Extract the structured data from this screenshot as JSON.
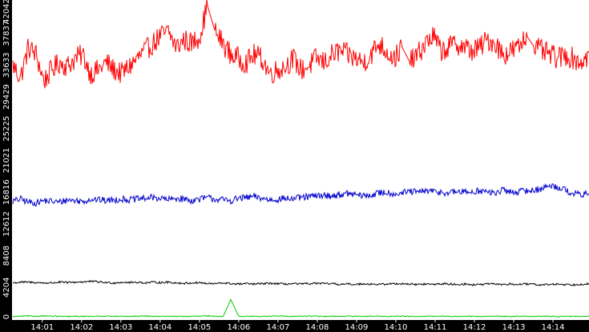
{
  "chart_data": {
    "type": "line",
    "title": "",
    "xlabel": "",
    "ylabel": "",
    "grid": false,
    "legend": "none",
    "colors": {
      "background": "#ffffff",
      "axis_band": "#000000",
      "axis_text": "#ffffff"
    },
    "ylim": [
      0,
      42042
    ],
    "xlim": [
      "14:00:15",
      "14:14:55"
    ],
    "y_ticks": [
      "0",
      "4204",
      "8408",
      "12612",
      "16816",
      "21021",
      "25225",
      "29429",
      "33633",
      "37837",
      "42042"
    ],
    "x_ticks": [
      "14:01",
      "14:02",
      "14:03",
      "14:04",
      "14:05",
      "14:06",
      "14:07",
      "14:08",
      "14:09",
      "14:10",
      "14:11",
      "14:12",
      "14:13",
      "14:14"
    ],
    "x_tick_minutes": [
      1,
      2,
      3,
      4,
      5,
      6,
      7,
      8,
      9,
      10,
      11,
      12,
      13,
      14
    ],
    "series": [
      {
        "color": "#ff0000",
        "noise": 1500,
        "values": [
          33600,
          32000,
          36000,
          35000,
          31500,
          33000,
          34000,
          33500,
          34500,
          35000,
          32500,
          33000,
          34000,
          33000,
          32500,
          33500,
          34500,
          35500,
          36500,
          37500,
          38000,
          36000,
          37000,
          36500,
          37500,
          41500,
          38000,
          36500,
          35000,
          34500,
          34000,
          35000,
          34500,
          32500,
          33000,
          33500,
          34500,
          33000,
          33500,
          34500,
          34000,
          35000,
          35500,
          35000,
          34500,
          34000,
          35000,
          36500,
          35500,
          34500,
          36000,
          34000,
          35000,
          36500,
          37500,
          35500,
          36000,
          36500,
          36000,
          35500,
          36000,
          37000,
          36500,
          35000,
          35500,
          36000,
          37500,
          36000,
          35500,
          35000,
          34500,
          35000,
          34500,
          34000,
          35000
        ]
      },
      {
        "color": "#0000cc",
        "noise": 450,
        "values": [
          15600,
          15900,
          15500,
          15400,
          15700,
          15600,
          15500,
          15800,
          15700,
          15600,
          15900,
          15800,
          15700,
          15800,
          15900,
          15800,
          15900,
          16000,
          16100,
          16000,
          15800,
          16000,
          15900,
          15700,
          15900,
          16100,
          15900,
          15800,
          15700,
          16000,
          16100,
          16200,
          16000,
          15800,
          15900,
          16000,
          15900,
          16100,
          16200,
          16300,
          16400,
          16300,
          16500,
          16600,
          16500,
          16300,
          16400,
          16700,
          16800,
          16600,
          16700,
          16900,
          16800,
          17000,
          16900,
          16800,
          16700,
          16900,
          16800,
          16900,
          17000,
          16800,
          16700,
          17100,
          16800,
          16900,
          17000,
          17100,
          17300,
          17700,
          17500,
          17100,
          16600,
          16500,
          16600
        ]
      },
      {
        "color": "#000000",
        "noise": 130,
        "values": [
          4800,
          4900,
          4900,
          4850,
          4800,
          4800,
          4900,
          4850,
          4900,
          4950,
          5000,
          4950,
          4850,
          4800,
          4900,
          4850,
          4900,
          4800,
          4900,
          4850,
          4900,
          4800,
          4750,
          4800,
          4850,
          4700,
          4700,
          4800,
          4700,
          4650,
          4700,
          4650,
          4700,
          4750,
          4700,
          4650,
          4700,
          4650,
          4700,
          4750,
          4700,
          4700,
          4600,
          4650,
          4600,
          4700,
          4650,
          4600,
          4650,
          4700,
          4700,
          4650,
          4600,
          4650,
          4600,
          4700,
          4650,
          4600,
          4650,
          4550,
          4600,
          4650,
          4650,
          4600,
          4650,
          4600,
          4650,
          4600,
          4550,
          4600,
          4650,
          4600,
          4550,
          4650,
          4700
        ]
      },
      {
        "color": "#00cc00",
        "noise": 60,
        "values": [
          350,
          400,
          420,
          380,
          450,
          400,
          380,
          350,
          380,
          360,
          400,
          380,
          420,
          400,
          380,
          360,
          400,
          420,
          380,
          360,
          400,
          380,
          360,
          380,
          400,
          420,
          380,
          360,
          2600,
          380,
          400,
          380,
          360,
          400,
          420,
          400,
          380,
          400,
          420,
          380,
          360,
          400,
          380,
          400,
          380,
          360,
          400,
          380,
          360,
          400,
          420,
          380,
          360,
          400,
          380,
          400,
          380,
          360,
          400,
          380,
          360,
          380,
          400,
          380,
          360,
          400,
          380,
          360,
          400,
          380,
          360,
          400,
          380,
          360,
          380
        ]
      }
    ]
  }
}
